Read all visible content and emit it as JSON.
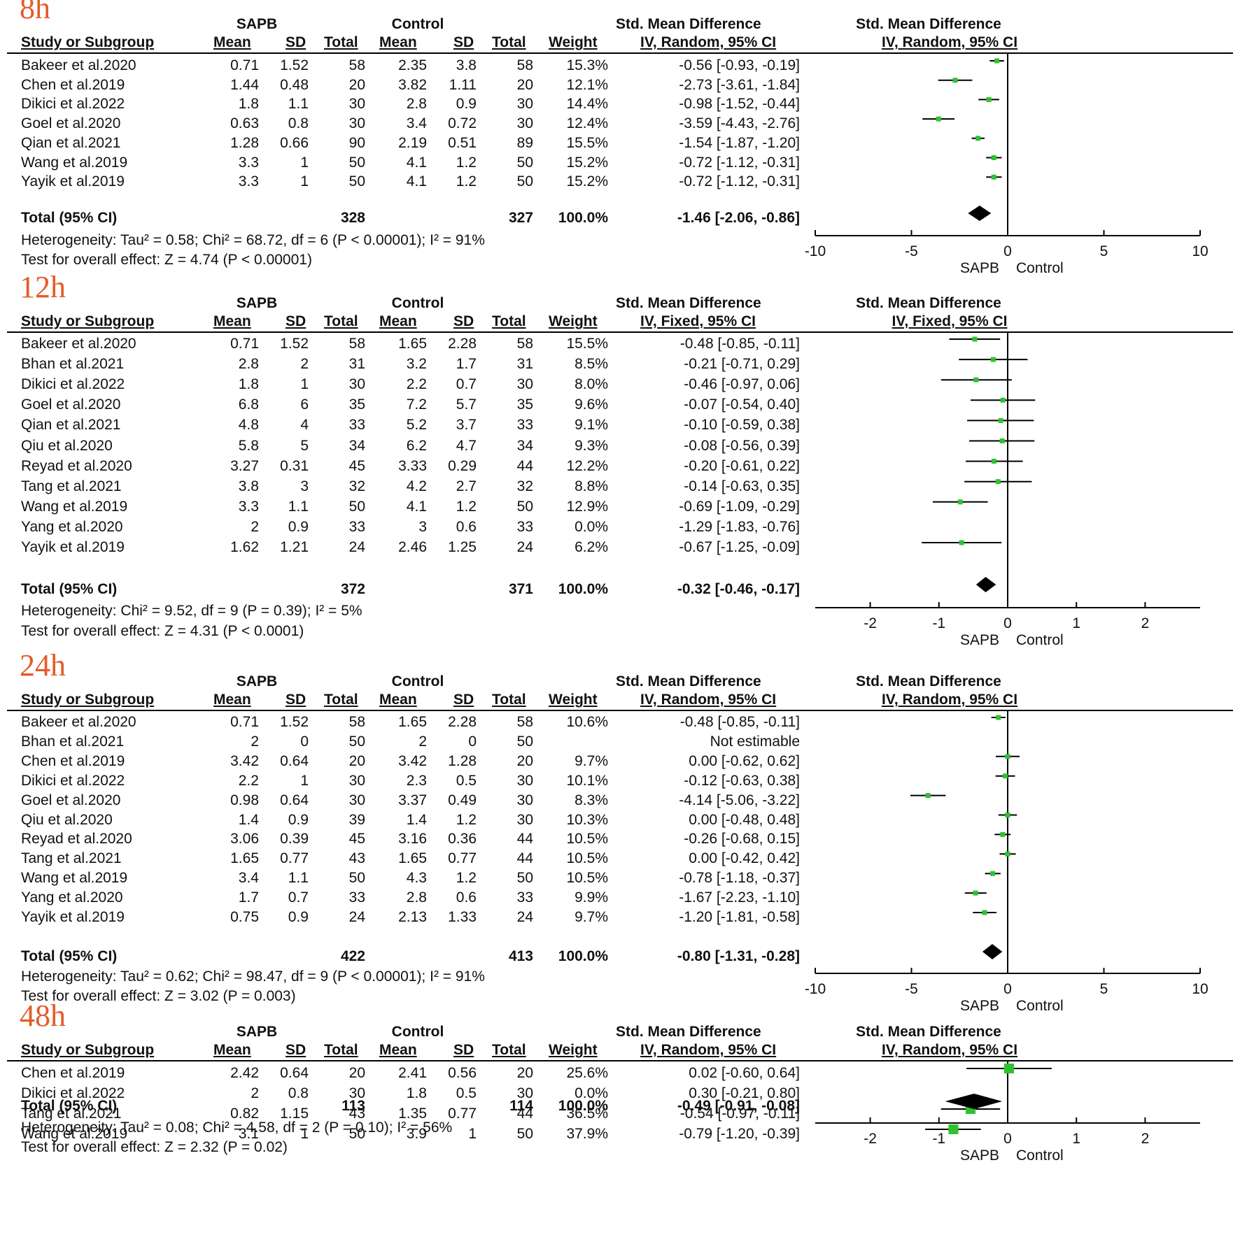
{
  "colors": {
    "tag": "#e45b2a",
    "marker": "#2fc22f",
    "line": "#000000"
  },
  "common_headers": {
    "group_exp": "SAPB",
    "group_ctrl": "Control",
    "smd": "Std. Mean Difference",
    "col_study": "Study or Subgroup",
    "col_mean": "Mean",
    "col_sd": "SD",
    "col_total": "Total",
    "col_weight": "Weight",
    "favours_left": "SAPB",
    "favours_right": "Control"
  },
  "chart_data": [
    {
      "type": "forest",
      "tag": "8h",
      "method": "IV, Random, 95% CI",
      "xlim": [
        -10,
        10
      ],
      "ticks": [
        "-10",
        "-5",
        "0",
        "5",
        "10"
      ],
      "tick_values": [
        -10,
        -5,
        0,
        5,
        10
      ],
      "rows": [
        {
          "study": "Bakeer  et al.2020",
          "m1": "0.71",
          "sd1": "1.52",
          "n1": "58",
          "m2": "2.35",
          "sd2": "3.8",
          "n2": "58",
          "weight": "15.3%",
          "ci_text": "-0.56 [-0.93, -0.19]",
          "est": -0.56,
          "lo": -0.93,
          "hi": -0.19
        },
        {
          "study": "Chen et al.2019",
          "m1": "1.44",
          "sd1": "0.48",
          "n1": "20",
          "m2": "3.82",
          "sd2": "1.11",
          "n2": "20",
          "weight": "12.1%",
          "ci_text": "-2.73 [-3.61, -1.84]",
          "est": -2.73,
          "lo": -3.61,
          "hi": -1.84
        },
        {
          "study": "Dikici et al.2022",
          "m1": "1.8",
          "sd1": "1.1",
          "n1": "30",
          "m2": "2.8",
          "sd2": "0.9",
          "n2": "30",
          "weight": "14.4%",
          "ci_text": "-0.98 [-1.52, -0.44]",
          "est": -0.98,
          "lo": -1.52,
          "hi": -0.44
        },
        {
          "study": "Goel  et al.2020",
          "m1": "0.63",
          "sd1": "0.8",
          "n1": "30",
          "m2": "3.4",
          "sd2": "0.72",
          "n2": "30",
          "weight": "12.4%",
          "ci_text": "-3.59 [-4.43, -2.76]",
          "est": -3.59,
          "lo": -4.43,
          "hi": -2.76
        },
        {
          "study": "Qian  et al.2021",
          "m1": "1.28",
          "sd1": "0.66",
          "n1": "90",
          "m2": "2.19",
          "sd2": "0.51",
          "n2": "89",
          "weight": "15.5%",
          "ci_text": "-1.54 [-1.87, -1.20]",
          "est": -1.54,
          "lo": -1.87,
          "hi": -1.2
        },
        {
          "study": "Wang et al.2019",
          "m1": "3.3",
          "sd1": "1",
          "n1": "50",
          "m2": "4.1",
          "sd2": "1.2",
          "n2": "50",
          "weight": "15.2%",
          "ci_text": "-0.72 [-1.12, -0.31]",
          "est": -0.72,
          "lo": -1.12,
          "hi": -0.31
        },
        {
          "study": "Yayik  et al.2019",
          "m1": "3.3",
          "sd1": "1",
          "n1": "50",
          "m2": "4.1",
          "sd2": "1.2",
          "n2": "50",
          "weight": "15.2%",
          "ci_text": "-0.72 [-1.12, -0.31]",
          "est": -0.72,
          "lo": -1.12,
          "hi": -0.31
        }
      ],
      "total": {
        "label": "Total (95% CI)",
        "n1": "328",
        "n2": "327",
        "weight": "100.0%",
        "ci_text": "-1.46 [-2.06, -0.86]",
        "est": -1.46,
        "lo": -2.06,
        "hi": -0.86
      },
      "heterogeneity": "Heterogeneity: Tau² = 0.58; Chi² = 68.72, df = 6 (P < 0.00001); I² = 91%",
      "overall": "Test for overall effect: Z = 4.74 (P < 0.00001)"
    },
    {
      "type": "forest",
      "tag": "12h",
      "method": "IV, Fixed, 95% CI",
      "xlim": [
        -2.8,
        2.8
      ],
      "ticks": [
        "-2",
        "-1",
        "0",
        "1",
        "2"
      ],
      "tick_values": [
        -2,
        -1,
        0,
        1,
        2
      ],
      "rows": [
        {
          "study": "Bakeer  et al.2020",
          "m1": "0.71",
          "sd1": "1.52",
          "n1": "58",
          "m2": "1.65",
          "sd2": "2.28",
          "n2": "58",
          "weight": "15.5%",
          "ci_text": "-0.48 [-0.85, -0.11]",
          "est": -0.48,
          "lo": -0.85,
          "hi": -0.11
        },
        {
          "study": "Bhan  et al.2021",
          "m1": "2.8",
          "sd1": "2",
          "n1": "31",
          "m2": "3.2",
          "sd2": "1.7",
          "n2": "31",
          "weight": "8.5%",
          "ci_text": "-0.21 [-0.71, 0.29]",
          "est": -0.21,
          "lo": -0.71,
          "hi": 0.29
        },
        {
          "study": "Dikici et al.2022",
          "m1": "1.8",
          "sd1": "1",
          "n1": "30",
          "m2": "2.2",
          "sd2": "0.7",
          "n2": "30",
          "weight": "8.0%",
          "ci_text": "-0.46 [-0.97, 0.06]",
          "est": -0.46,
          "lo": -0.97,
          "hi": 0.06
        },
        {
          "study": "Goel  et al.2020",
          "m1": "6.8",
          "sd1": "6",
          "n1": "35",
          "m2": "7.2",
          "sd2": "5.7",
          "n2": "35",
          "weight": "9.6%",
          "ci_text": "-0.07 [-0.54, 0.40]",
          "est": -0.07,
          "lo": -0.54,
          "hi": 0.4
        },
        {
          "study": "Qian  et al.2021",
          "m1": "4.8",
          "sd1": "4",
          "n1": "33",
          "m2": "5.2",
          "sd2": "3.7",
          "n2": "33",
          "weight": "9.1%",
          "ci_text": "-0.10 [-0.59, 0.38]",
          "est": -0.1,
          "lo": -0.59,
          "hi": 0.38
        },
        {
          "study": "Qiu et al.2020",
          "m1": "5.8",
          "sd1": "5",
          "n1": "34",
          "m2": "6.2",
          "sd2": "4.7",
          "n2": "34",
          "weight": "9.3%",
          "ci_text": "-0.08 [-0.56, 0.39]",
          "est": -0.08,
          "lo": -0.56,
          "hi": 0.39
        },
        {
          "study": "Reyad et al.2020",
          "m1": "3.27",
          "sd1": "0.31",
          "n1": "45",
          "m2": "3.33",
          "sd2": "0.29",
          "n2": "44",
          "weight": "12.2%",
          "ci_text": "-0.20 [-0.61, 0.22]",
          "est": -0.2,
          "lo": -0.61,
          "hi": 0.22
        },
        {
          "study": "Tang  et al.2021",
          "m1": "3.8",
          "sd1": "3",
          "n1": "32",
          "m2": "4.2",
          "sd2": "2.7",
          "n2": "32",
          "weight": "8.8%",
          "ci_text": "-0.14 [-0.63, 0.35]",
          "est": -0.14,
          "lo": -0.63,
          "hi": 0.35
        },
        {
          "study": "Wang et al.2019",
          "m1": "3.3",
          "sd1": "1.1",
          "n1": "50",
          "m2": "4.1",
          "sd2": "1.2",
          "n2": "50",
          "weight": "12.9%",
          "ci_text": "-0.69 [-1.09, -0.29]",
          "est": -0.69,
          "lo": -1.09,
          "hi": -0.29
        },
        {
          "study": "Yang  et al.2020",
          "m1": "2",
          "sd1": "0.9",
          "n1": "33",
          "m2": "3",
          "sd2": "0.6",
          "n2": "33",
          "weight": "0.0%",
          "ci_text": "-1.29 [-1.83, -0.76]",
          "est": null,
          "lo": null,
          "hi": null
        },
        {
          "study": "Yayik  et al.2019",
          "m1": "1.62",
          "sd1": "1.21",
          "n1": "24",
          "m2": "2.46",
          "sd2": "1.25",
          "n2": "24",
          "weight": "6.2%",
          "ci_text": "-0.67 [-1.25, -0.09]",
          "est": -0.67,
          "lo": -1.25,
          "hi": -0.09
        }
      ],
      "total": {
        "label": "Total (95% CI)",
        "n1": "372",
        "n2": "371",
        "weight": "100.0%",
        "ci_text": "-0.32 [-0.46, -0.17]",
        "est": -0.32,
        "lo": -0.46,
        "hi": -0.17
      },
      "heterogeneity": "Heterogeneity: Chi² = 9.52, df = 9 (P = 0.39); I² = 5%",
      "overall": "Test for overall effect: Z = 4.31 (P < 0.0001)"
    },
    {
      "type": "forest",
      "tag": "24h",
      "method": "IV, Random, 95% CI",
      "xlim": [
        -10,
        10
      ],
      "ticks": [
        "-10",
        "-5",
        "0",
        "5",
        "10"
      ],
      "tick_values": [
        -10,
        -5,
        0,
        5,
        10
      ],
      "rows": [
        {
          "study": "Bakeer  et al.2020",
          "m1": "0.71",
          "sd1": "1.52",
          "n1": "58",
          "m2": "1.65",
          "sd2": "2.28",
          "n2": "58",
          "weight": "10.6%",
          "ci_text": "-0.48 [-0.85, -0.11]",
          "est": -0.48,
          "lo": -0.85,
          "hi": -0.11
        },
        {
          "study": "Bhan  et al.2021",
          "m1": "2",
          "sd1": "0",
          "n1": "50",
          "m2": "2",
          "sd2": "0",
          "n2": "50",
          "weight": "",
          "ci_text": "Not estimable",
          "est": null,
          "lo": null,
          "hi": null
        },
        {
          "study": "Chen et al.2019",
          "m1": "3.42",
          "sd1": "0.64",
          "n1": "20",
          "m2": "3.42",
          "sd2": "1.28",
          "n2": "20",
          "weight": "9.7%",
          "ci_text": "0.00 [-0.62, 0.62]",
          "est": 0.0,
          "lo": -0.62,
          "hi": 0.62
        },
        {
          "study": "Dikici et al.2022",
          "m1": "2.2",
          "sd1": "1",
          "n1": "30",
          "m2": "2.3",
          "sd2": "0.5",
          "n2": "30",
          "weight": "10.1%",
          "ci_text": "-0.12 [-0.63, 0.38]",
          "est": -0.12,
          "lo": -0.63,
          "hi": 0.38
        },
        {
          "study": "Goel  et al.2020",
          "m1": "0.98",
          "sd1": "0.64",
          "n1": "30",
          "m2": "3.37",
          "sd2": "0.49",
          "n2": "30",
          "weight": "8.3%",
          "ci_text": "-4.14 [-5.06, -3.22]",
          "est": -4.14,
          "lo": -5.06,
          "hi": -3.22
        },
        {
          "study": "Qiu et al.2020",
          "m1": "1.4",
          "sd1": "0.9",
          "n1": "39",
          "m2": "1.4",
          "sd2": "1.2",
          "n2": "30",
          "weight": "10.3%",
          "ci_text": "0.00 [-0.48, 0.48]",
          "est": 0.0,
          "lo": -0.48,
          "hi": 0.48
        },
        {
          "study": "Reyad et al.2020",
          "m1": "3.06",
          "sd1": "0.39",
          "n1": "45",
          "m2": "3.16",
          "sd2": "0.36",
          "n2": "44",
          "weight": "10.5%",
          "ci_text": "-0.26 [-0.68, 0.15]",
          "est": -0.26,
          "lo": -0.68,
          "hi": 0.15
        },
        {
          "study": "Tang  et al.2021",
          "m1": "1.65",
          "sd1": "0.77",
          "n1": "43",
          "m2": "1.65",
          "sd2": "0.77",
          "n2": "44",
          "weight": "10.5%",
          "ci_text": "0.00 [-0.42, 0.42]",
          "est": 0.0,
          "lo": -0.42,
          "hi": 0.42
        },
        {
          "study": "Wang et al.2019",
          "m1": "3.4",
          "sd1": "1.1",
          "n1": "50",
          "m2": "4.3",
          "sd2": "1.2",
          "n2": "50",
          "weight": "10.5%",
          "ci_text": "-0.78 [-1.18, -0.37]",
          "est": -0.78,
          "lo": -1.18,
          "hi": -0.37
        },
        {
          "study": "Yang  et al.2020",
          "m1": "1.7",
          "sd1": "0.7",
          "n1": "33",
          "m2": "2.8",
          "sd2": "0.6",
          "n2": "33",
          "weight": "9.9%",
          "ci_text": "-1.67 [-2.23, -1.10]",
          "est": -1.67,
          "lo": -2.23,
          "hi": -1.1
        },
        {
          "study": "Yayik  et al.2019",
          "m1": "0.75",
          "sd1": "0.9",
          "n1": "24",
          "m2": "2.13",
          "sd2": "1.33",
          "n2": "24",
          "weight": "9.7%",
          "ci_text": "-1.20 [-1.81, -0.58]",
          "est": -1.2,
          "lo": -1.81,
          "hi": -0.58
        }
      ],
      "total": {
        "label": "Total (95% CI)",
        "n1": "422",
        "n2": "413",
        "weight": "100.0%",
        "ci_text": "-0.80 [-1.31, -0.28]",
        "est": -0.8,
        "lo": -1.31,
        "hi": -0.28
      },
      "heterogeneity": "Heterogeneity: Tau² = 0.62; Chi² = 98.47, df = 9 (P < 0.00001); I² = 91%",
      "overall": "Test for overall effect: Z = 3.02 (P = 0.003)"
    },
    {
      "type": "forest",
      "tag": "48h",
      "method": "IV, Random, 95% CI",
      "xlim": [
        -2.8,
        2.8
      ],
      "ticks": [
        "-2",
        "-1",
        "0",
        "1",
        "2"
      ],
      "tick_values": [
        -2,
        -1,
        0,
        1,
        2
      ],
      "rows": [
        {
          "study": "Chen et al.2019",
          "m1": "2.42",
          "sd1": "0.64",
          "n1": "20",
          "m2": "2.41",
          "sd2": "0.56",
          "n2": "20",
          "weight": "25.6%",
          "ci_text": "0.02 [-0.60, 0.64]",
          "est": 0.02,
          "lo": -0.6,
          "hi": 0.64
        },
        {
          "study": "Dikici et al.2022",
          "m1": "2",
          "sd1": "0.8",
          "n1": "30",
          "m2": "1.8",
          "sd2": "0.5",
          "n2": "30",
          "weight": "0.0%",
          "ci_text": "0.30 [-0.21, 0.80]",
          "est": null,
          "lo": null,
          "hi": null
        },
        {
          "study": "Tang  et al.2021",
          "m1": "0.82",
          "sd1": "1.15",
          "n1": "43",
          "m2": "1.35",
          "sd2": "0.77",
          "n2": "44",
          "weight": "36.5%",
          "ci_text": "-0.54 [-0.97, -0.11]",
          "est": -0.54,
          "lo": -0.97,
          "hi": -0.11
        },
        {
          "study": "Wang et al.2019",
          "m1": "3.1",
          "sd1": "1",
          "n1": "50",
          "m2": "3.9",
          "sd2": "1",
          "n2": "50",
          "weight": "37.9%",
          "ci_text": "-0.79 [-1.20, -0.39]",
          "est": -0.79,
          "lo": -1.2,
          "hi": -0.39
        }
      ],
      "total": {
        "label": "Total (95% CI)",
        "n1": "113",
        "n2": "114",
        "weight": "100.0%",
        "ci_text": "-0.49 [-0.91, -0.08]",
        "est": -0.49,
        "lo": -0.91,
        "hi": -0.08
      },
      "heterogeneity": "Heterogeneity: Tau² = 0.08; Chi² = 4.58, df = 2 (P = 0.10); I² = 56%",
      "overall": "Test for overall effect: Z = 2.32 (P = 0.02)"
    }
  ]
}
